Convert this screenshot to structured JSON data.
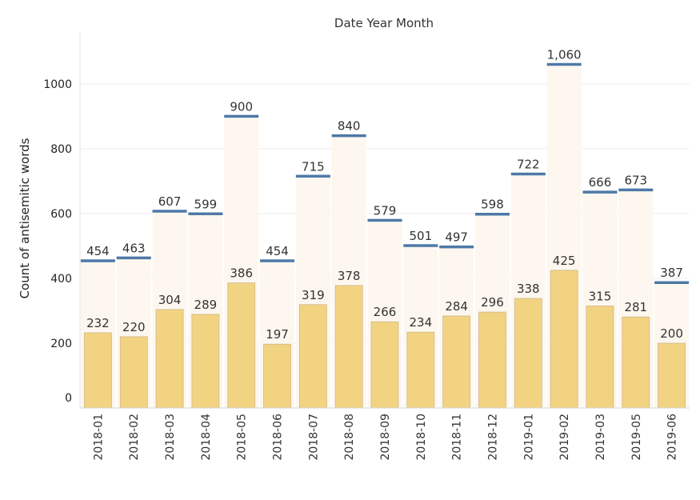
{
  "chart_data": {
    "type": "bar",
    "title": "Date Year Month",
    "xlabel": "",
    "ylabel": "Count of antisemitic words",
    "ylim": [
      0,
      1160
    ],
    "yticks": [
      0,
      200,
      400,
      600,
      800,
      1000
    ],
    "grid": true,
    "categories": [
      "2018-01",
      "2018-02",
      "2018-03",
      "2018-04",
      "2018-05",
      "2018-06",
      "2018-07",
      "2018-08",
      "2018-09",
      "2018-10",
      "2018-11",
      "2018-12",
      "2019-01",
      "2019-02",
      "2019-03",
      "2019-05",
      "2019-06"
    ],
    "series": [
      {
        "kind": "bar",
        "values": [
          232,
          220,
          304,
          289,
          386,
          197,
          319,
          378,
          266,
          234,
          284,
          296,
          338,
          425,
          315,
          281,
          200
        ],
        "labels": [
          "232",
          "220",
          "304",
          "289",
          "386",
          "197",
          "319",
          "378",
          "266",
          "234",
          "284",
          "296",
          "338",
          "425",
          "315",
          "281",
          "200"
        ],
        "color": "#f2d382"
      },
      {
        "kind": "reference-line",
        "values": [
          454,
          463,
          607,
          599,
          900,
          454,
          715,
          840,
          579,
          501,
          497,
          598,
          722,
          1060,
          666,
          673,
          387
        ],
        "labels": [
          "454",
          "463",
          "607",
          "599",
          "900",
          "454",
          "715",
          "840",
          "579",
          "501",
          "497",
          "598",
          "722",
          "1,060",
          "666",
          "673",
          "387"
        ],
        "color": "#4e79a7",
        "band_color": "#fdf7ef"
      }
    ]
  }
}
